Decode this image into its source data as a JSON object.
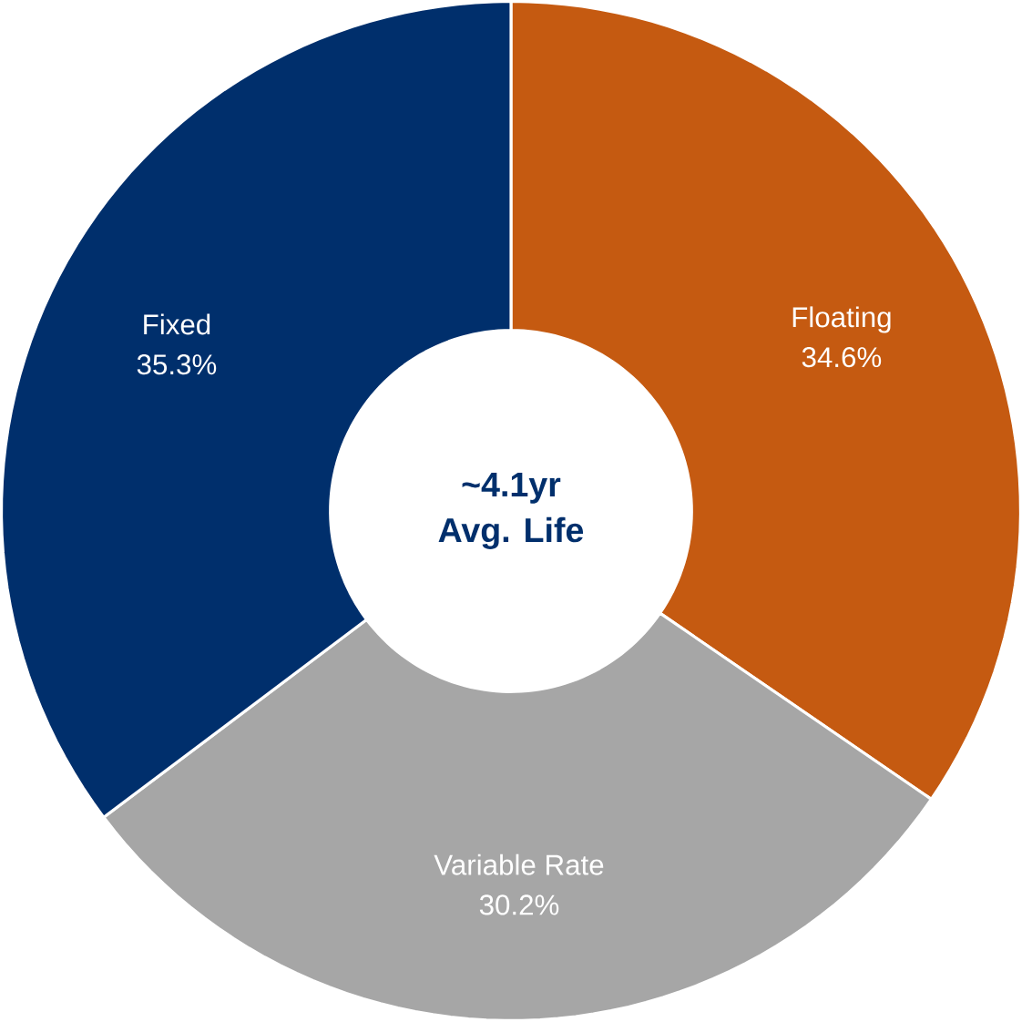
{
  "chart_data": {
    "type": "donut",
    "categories": [
      "Floating",
      "Variable Rate",
      "Fixed"
    ],
    "values": [
      34.6,
      30.2,
      35.3
    ],
    "value_labels": [
      "34.6%",
      "30.2%",
      "35.3%"
    ],
    "colors": [
      "#c55a11",
      "#a6a6a6",
      "#002f6c"
    ],
    "annotations": [
      "~4.1yr",
      "Avg. Life"
    ]
  }
}
